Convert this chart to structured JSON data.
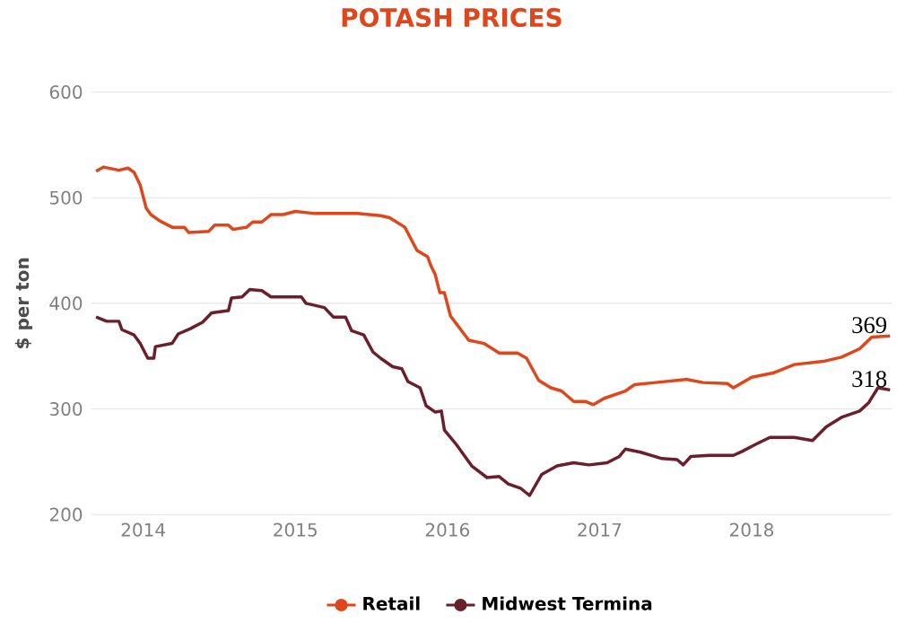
{
  "chart_data": {
    "type": "line",
    "title": "POTASH PRICES",
    "ylabel": "$ per ton",
    "xlim": [
      2013.66,
      2018.92
    ],
    "xticks": [
      2014,
      2015,
      2016,
      2017,
      2018
    ],
    "ylim": [
      200,
      600
    ],
    "yticks": [
      200,
      300,
      400,
      500,
      600
    ],
    "grid": "y",
    "legend": "bottom",
    "series": [
      {
        "name": "Retail",
        "color": "#e0461b",
        "x": [
          2013.69,
          2013.74,
          2013.84,
          2013.9,
          2013.94,
          2013.98,
          2014.02,
          2014.05,
          2014.11,
          2014.19,
          2014.27,
          2014.3,
          2014.43,
          2014.47,
          2014.56,
          2014.59,
          2014.68,
          2014.72,
          2014.78,
          2014.84,
          2014.92,
          2015.0,
          2015.13,
          2015.25,
          2015.41,
          2015.56,
          2015.62,
          2015.72,
          2015.8,
          2015.87,
          2015.89,
          2015.92,
          2015.95,
          2015.98,
          2016.02,
          2016.14,
          2016.24,
          2016.34,
          2016.46,
          2016.52,
          2016.6,
          2016.68,
          2016.75,
          2016.83,
          2016.91,
          2016.96,
          2017.03,
          2017.17,
          2017.23,
          2017.37,
          2017.57,
          2017.68,
          2017.84,
          2017.88,
          2018.0,
          2018.14,
          2018.28,
          2018.47,
          2018.59,
          2018.71,
          2018.79,
          2018.91
        ],
        "values": [
          525,
          529,
          526,
          528,
          524,
          512,
          490,
          484,
          478,
          472,
          472,
          467,
          468,
          474,
          474,
          470,
          472,
          477,
          477,
          484,
          484,
          487,
          485,
          485,
          485,
          483,
          481,
          472,
          450,
          444,
          436,
          427,
          410,
          410,
          388,
          365,
          362,
          353,
          353,
          348,
          327,
          320,
          317,
          307,
          307,
          304,
          310,
          317,
          323,
          325,
          328,
          325,
          324,
          320,
          330,
          334,
          342,
          345,
          349,
          357,
          368,
          369
        ]
      },
      {
        "name": "Midwest Termina",
        "color": "#6b1f2a",
        "x": [
          2013.69,
          2013.76,
          2013.84,
          2013.86,
          2013.94,
          2013.98,
          2014.03,
          2014.07,
          2014.08,
          2014.19,
          2014.23,
          2014.31,
          2014.39,
          2014.45,
          2014.56,
          2014.58,
          2014.65,
          2014.7,
          2014.78,
          2014.84,
          2015.04,
          2015.07,
          2015.19,
          2015.25,
          2015.33,
          2015.37,
          2015.45,
          2015.51,
          2015.56,
          2015.64,
          2015.7,
          2015.74,
          2015.82,
          2015.86,
          2015.92,
          2015.96,
          2015.98,
          2016.06,
          2016.16,
          2016.26,
          2016.34,
          2016.4,
          2016.48,
          2016.54,
          2016.62,
          2016.72,
          2016.83,
          2016.93,
          2017.05,
          2017.13,
          2017.17,
          2017.27,
          2017.41,
          2017.51,
          2017.55,
          2017.6,
          2017.72,
          2017.88,
          2017.94,
          2018.02,
          2018.12,
          2018.28,
          2018.4,
          2018.49,
          2018.59,
          2018.71,
          2018.77,
          2018.83,
          2018.91
        ],
        "values": [
          387,
          383,
          383,
          375,
          370,
          362,
          348,
          348,
          359,
          362,
          371,
          376,
          382,
          391,
          393,
          405,
          406,
          413,
          412,
          406,
          406,
          400,
          396,
          387,
          387,
          374,
          370,
          354,
          348,
          340,
          338,
          326,
          320,
          303,
          297,
          298,
          280,
          266,
          246,
          235,
          236,
          229,
          225,
          218,
          238,
          246,
          249,
          247,
          249,
          255,
          262,
          259,
          253,
          252,
          247,
          255,
          256,
          256,
          260,
          266,
          273,
          273,
          270,
          283,
          292,
          298,
          306,
          320,
          318
        ]
      }
    ],
    "annotations": [
      {
        "text": "369",
        "x": 2018.91,
        "y": 369
      },
      {
        "text": "318",
        "x": 2018.91,
        "y": 318
      }
    ]
  }
}
